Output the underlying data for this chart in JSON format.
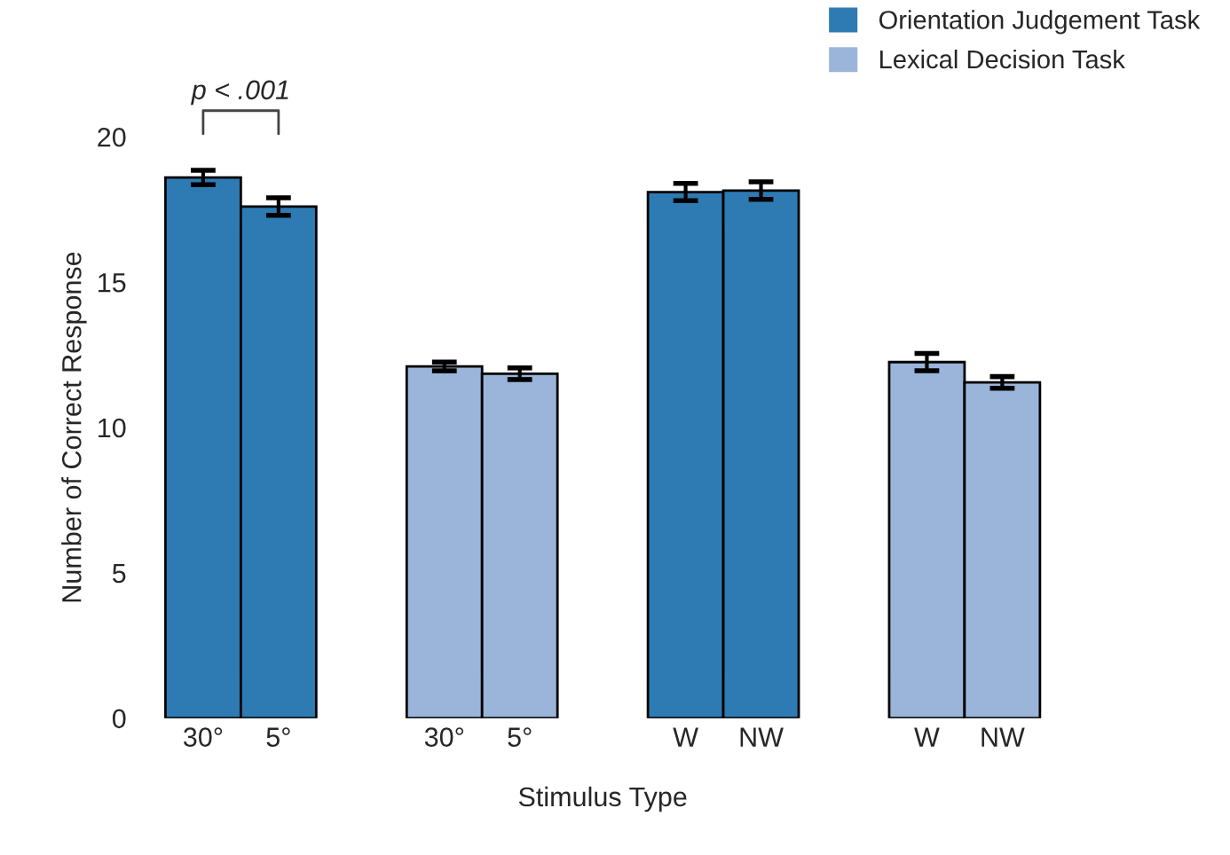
{
  "chart_data": {
    "type": "bar",
    "xlabel": "Stimulus Type",
    "ylabel": "Number of Correct Response",
    "categories": [
      "30°",
      "5°",
      "30°",
      "5°",
      "W",
      "NW",
      "W",
      "NW"
    ],
    "series": [
      {
        "name": "Orientation Judgement Task",
        "color": "#2e7bb4",
        "values": [
          18.6,
          17.6,
          null,
          null,
          18.1,
          18.15,
          null,
          null
        ],
        "errors": [
          0.25,
          0.3,
          null,
          null,
          0.3,
          0.3,
          null,
          null
        ]
      },
      {
        "name": "Lexical Decision Task",
        "color": "#9ab5d9",
        "values": [
          null,
          null,
          12.1,
          11.85,
          null,
          null,
          12.25,
          11.55
        ],
        "errors": [
          null,
          null,
          0.15,
          0.2,
          null,
          null,
          0.3,
          0.2
        ]
      }
    ],
    "ylim": [
      0,
      20
    ],
    "yticks": [
      0,
      5,
      10,
      15,
      20
    ],
    "grid": false,
    "legend": "top right",
    "annotations": [
      "p < .001"
    ]
  }
}
